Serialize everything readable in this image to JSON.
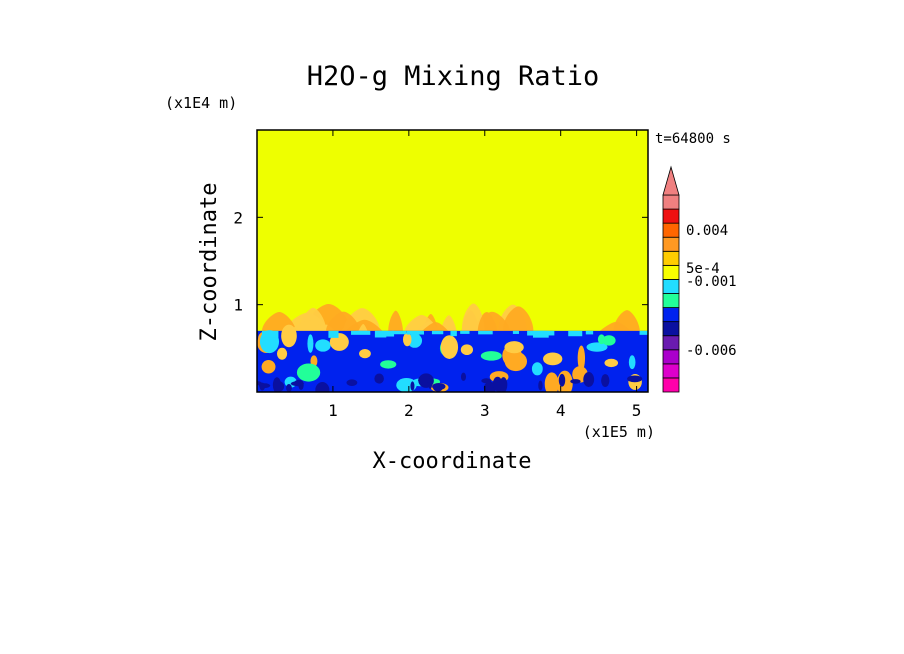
{
  "chart_data": {
    "type": "heatmap",
    "title": "H2O-g Mixing Ratio",
    "xlabel": "X-coordinate",
    "ylabel": "Z-coordinate",
    "x_scale_label": "(x1E5 m)",
    "y_scale_label": "(x1E4 m)",
    "time_label": "t=64800 s",
    "xlim": [
      0,
      5.15
    ],
    "ylim": [
      0,
      3.0
    ],
    "x_ticks": [
      {
        "value": 1,
        "label": "1"
      },
      {
        "value": 2,
        "label": "2"
      },
      {
        "value": 3,
        "label": "3"
      },
      {
        "value": 4,
        "label": "4"
      },
      {
        "value": 5,
        "label": "5"
      }
    ],
    "y_ticks": [
      {
        "value": 1,
        "label": "1"
      },
      {
        "value": 2,
        "label": "2"
      }
    ],
    "layers": {
      "dry_layer_top": 3.0,
      "mixed_layer_top": 0.7,
      "plume_max_height": 1.02
    },
    "colorbar": {
      "levels": [
        {
          "color": "#ff00aa"
        },
        {
          "color": "#dd00cc"
        },
        {
          "color": "#aa00cc"
        },
        {
          "color": "#6a1bb0"
        },
        {
          "color": "#0a10a0"
        },
        {
          "color": "#0022ee"
        },
        {
          "color": "#22ff99"
        },
        {
          "color": "#22ddff"
        },
        {
          "color": "#f8ff00"
        },
        {
          "color": "#ffcc00"
        },
        {
          "color": "#ff9922"
        },
        {
          "color": "#ff6600"
        },
        {
          "color": "#ee1111"
        },
        {
          "color": "#f08080"
        }
      ],
      "labels": [
        {
          "text": "0.004",
          "at_level": 11.5
        },
        {
          "text": "5e-4",
          "at_level": 8.8
        },
        {
          "text": "-0.001",
          "at_level": 7.9
        },
        {
          "text": "-0.006",
          "at_level": 3.0
        }
      ],
      "overflow_arrow_color": "#f08080"
    },
    "colors": {
      "background_field": "#eeff00",
      "mixed_layer": "#0022ee",
      "deep_blue": "#0a10a0",
      "cyan": "#22ddff",
      "green": "#22ff99",
      "orange": "#ffaa22",
      "light_orange": "#ffcc44"
    }
  }
}
